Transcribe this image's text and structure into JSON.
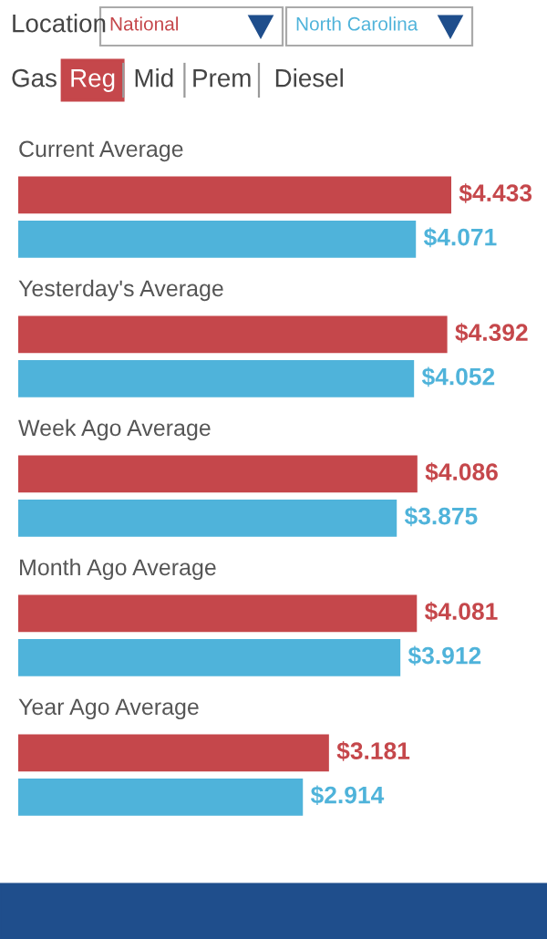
{
  "chart_data": {
    "type": "bar",
    "orientation": "horizontal",
    "categories": [
      "Current Average",
      "Yesterday's Average",
      "Week Ago Average",
      "Month Ago Average",
      "Year Ago Average"
    ],
    "series": [
      {
        "name": "National",
        "color": "#c5474b",
        "values": [
          4.433,
          4.392,
          4.086,
          4.081,
          3.181
        ],
        "value_labels": [
          "$4.433",
          "$4.392",
          "$4.086",
          "$4.081",
          "$3.181"
        ]
      },
      {
        "name": "North Carolina",
        "color": "#4fb3da",
        "values": [
          4.071,
          4.052,
          3.875,
          3.912,
          2.914
        ],
        "value_labels": [
          "$4.071",
          "$4.052",
          "$3.875",
          "$3.912",
          "$2.914"
        ]
      }
    ],
    "legend": "top",
    "annotations": [
      "Location",
      "Gas",
      "Reg",
      "Mid",
      "Prem",
      "Diesel"
    ]
  }
}
